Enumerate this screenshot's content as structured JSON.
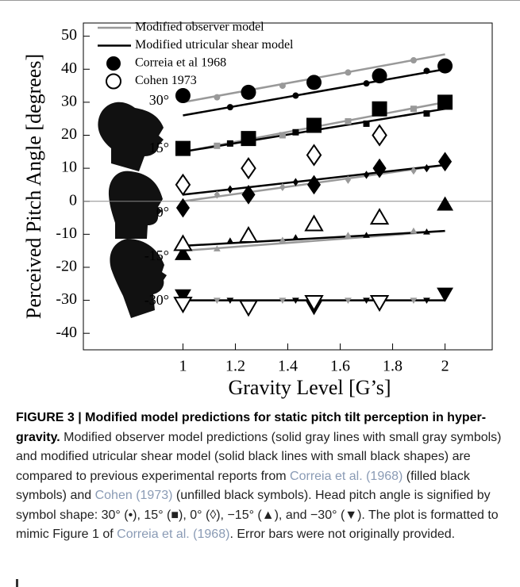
{
  "chart_data": {
    "type": "scatter",
    "xlabel": "Gravity Level [G’s]",
    "ylabel": "Perceived Pitch Angle [degrees]",
    "xlim": [
      0.62,
      2.18
    ],
    "ylim": [
      -45,
      54
    ],
    "xticks": [
      1,
      1.2,
      1.4,
      1.6,
      1.8,
      2
    ],
    "yticks": [
      -40,
      -30,
      -20,
      -10,
      0,
      10,
      20,
      30,
      40,
      50
    ],
    "zero_line": true,
    "annotations": [
      "30°",
      "15°",
      "0°",
      "-15°",
      "-30°"
    ],
    "series": [
      {
        "name": "Modified observer model",
        "color": "#999999",
        "legend_marker": "line",
        "marker_size": "small",
        "lines": [
          {
            "x": [
              1,
              2
            ],
            "values": [
              30,
              44.5
            ]
          },
          {
            "x": [
              1,
              2
            ],
            "values": [
              15,
              30
            ]
          },
          {
            "x": [
              1,
              2
            ],
            "values": [
              0,
              11
            ]
          },
          {
            "x": [
              1,
              2
            ],
            "values": [
              -15,
              -9
            ]
          },
          {
            "x": [
              1,
              2
            ],
            "values": [
              -30,
              -30
            ]
          }
        ],
        "groups": [
          {
            "marker": "circle",
            "x": [
              1.13,
              1.38,
              1.63,
              1.88
            ],
            "values": [
              31.5,
              35,
              39,
              42.7
            ]
          },
          {
            "marker": "square",
            "x": [
              1.13,
              1.38,
              1.63,
              1.88
            ],
            "values": [
              16.8,
              20,
              24.2,
              28
            ]
          },
          {
            "marker": "diamond",
            "x": [
              1.13,
              1.38,
              1.63,
              1.88
            ],
            "values": [
              2,
              4.3,
              6.5,
              9.3
            ]
          },
          {
            "marker": "triangle-up",
            "x": [
              1.13,
              1.38,
              1.63,
              1.88
            ],
            "values": [
              -14.4,
              -11.8,
              -10.3,
              -9
            ]
          },
          {
            "marker": "triangle-down",
            "x": [
              1.13,
              1.38,
              1.63,
              1.88
            ],
            "values": [
              -30,
              -30,
              -30,
              -30
            ]
          }
        ]
      },
      {
        "name": "Modified utricular shear model",
        "color": "#000000",
        "legend_marker": "line",
        "marker_size": "small",
        "lines": [
          {
            "x": [
              1,
              2
            ],
            "values": [
              26,
              40
            ]
          },
          {
            "x": [
              1,
              2
            ],
            "values": [
              15,
              28
            ]
          },
          {
            "x": [
              1,
              2
            ],
            "values": [
              2,
              11
            ]
          },
          {
            "x": [
              1,
              2
            ],
            "values": [
              -13.5,
              -9
            ]
          },
          {
            "x": [
              1,
              2
            ],
            "values": [
              -30,
              -30
            ]
          }
        ],
        "groups": [
          {
            "marker": "circle",
            "x": [
              1.18,
              1.43,
              1.7,
              1.93
            ],
            "values": [
              28.5,
              32,
              35.7,
              39.5
            ]
          },
          {
            "marker": "square",
            "x": [
              1.18,
              1.43,
              1.7,
              1.93
            ],
            "values": [
              17.5,
              20.9,
              23.5,
              26.6
            ]
          },
          {
            "marker": "diamond",
            "x": [
              1.18,
              1.43,
              1.7,
              1.93
            ],
            "values": [
              3.6,
              5.8,
              8,
              10
            ]
          },
          {
            "marker": "triangle-up",
            "x": [
              1.18,
              1.43,
              1.7,
              1.93
            ],
            "values": [
              -12,
              -11,
              -10.3,
              -9.3
            ]
          },
          {
            "marker": "triangle-down",
            "x": [
              1.18,
              1.43,
              1.7,
              1.93
            ],
            "values": [
              -30,
              -30,
              -30,
              -30
            ]
          }
        ]
      },
      {
        "name": "Correia et al 1968",
        "color": "#000000",
        "legend_marker": "filled",
        "marker_size": "large",
        "groups": [
          {
            "marker": "circle",
            "x": [
              1,
              1.25,
              1.5,
              1.75,
              2
            ],
            "values": [
              32,
              33,
              36,
              38,
              41
            ]
          },
          {
            "marker": "square",
            "x": [
              1,
              1.25,
              1.5,
              1.75,
              2
            ],
            "values": [
              16,
              19,
              23,
              28,
              30
            ]
          },
          {
            "marker": "diamond",
            "x": [
              1,
              1.25,
              1.5,
              1.75,
              2
            ],
            "values": [
              -2,
              2,
              5,
              10,
              12
            ]
          },
          {
            "marker": "triangle-up",
            "x": [
              1,
              1.5,
              1.75,
              2
            ],
            "values": [
              -16,
              -7,
              -5,
              -1
            ]
          },
          {
            "marker": "triangle-down",
            "x": [
              1,
              1.5,
              2
            ],
            "values": [
              -28.5,
              -32,
              -28
            ]
          }
        ]
      },
      {
        "name": "Cohen 1973",
        "color": "#000000",
        "legend_marker": "open",
        "marker_size": "large",
        "groups": [
          {
            "marker": "diamond",
            "x": [
              1,
              1.25,
              1.5,
              1.75
            ],
            "values": [
              5,
              10,
              14,
              20
            ]
          },
          {
            "marker": "triangle-up",
            "x": [
              1,
              1.25,
              1.5,
              1.75
            ],
            "values": [
              -13,
              -10.5,
              -7,
              -5
            ]
          },
          {
            "marker": "triangle-down",
            "x": [
              1,
              1.25,
              1.5,
              1.75
            ],
            "values": [
              -31,
              -32,
              -30.5,
              -30.5
            ]
          }
        ]
      }
    ]
  },
  "caption": {
    "label": "FIGURE 3 | Modified model predictions for static pitch tilt perception in hyper-gravity.",
    "parts": [
      {
        "text": " Modified observer model predictions (solid gray lines with small gray symbols) and modified utricular shear model (solid black lines with small black shapes) are compared to previous experimental reports from "
      },
      {
        "text": "Correia et al. (1968)",
        "link": true
      },
      {
        "text": " (filled black symbols) and "
      },
      {
        "text": "Cohen (1973)",
        "link": true
      },
      {
        "text": " (unfilled black symbols). Head pitch angle is signified by symbol shape: 30° (•), 15° (■), 0° (◊), −15° (▲), and −30° (▼). The plot is formatted to mimic Figure 1 of "
      },
      {
        "text": "Correia et al. (1968)",
        "link": true
      },
      {
        "text": ". Error bars were not originally provided."
      }
    ]
  }
}
